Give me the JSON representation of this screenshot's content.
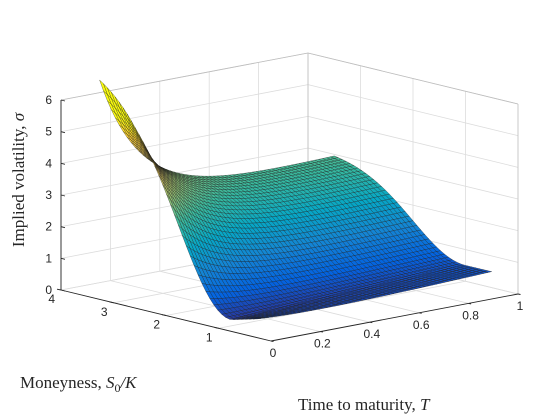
{
  "chart_data": {
    "type": "surface",
    "title": "",
    "xlabel": {
      "text": "Time to maturity, ",
      "symbol": "T"
    },
    "ylabel": {
      "text": "Moneyness, ",
      "symbol": "S",
      "sub": "0",
      "tail": "/K"
    },
    "zlabel": {
      "text": "Implied volatility, ",
      "symbol": "σ"
    },
    "x_range": [
      0,
      1
    ],
    "y_range": [
      0,
      4
    ],
    "z_range": [
      0,
      6
    ],
    "x_ticks": [
      "0",
      "0.2",
      "0.4",
      "0.6",
      "0.8",
      "1"
    ],
    "y_ticks": [
      "1",
      "2",
      "3",
      "4"
    ],
    "z_ticks": [
      "0",
      "1",
      "2",
      "3",
      "4",
      "5",
      "6"
    ],
    "surface_domain": {
      "T": [
        0.05,
        1.0
      ],
      "moneyness": [
        0.5,
        3.5
      ]
    },
    "grid_rows": 41,
    "grid_cols": 61,
    "colormap": "parula",
    "colormap_stops": [
      "#352a87",
      "#0363e1",
      "#1485d4",
      "#06a7c6",
      "#38b99e",
      "#92bf73",
      "#d9ba56",
      "#fcce2e",
      "#f9fb0e"
    ],
    "color_limits": [
      0,
      5.6
    ],
    "sample_points": [
      {
        "T": 0.05,
        "moneyness": 3.5,
        "iv": 5.6
      },
      {
        "T": 0.05,
        "moneyness": 2.2,
        "iv": 3.2
      },
      {
        "T": 0.05,
        "moneyness": 1.0,
        "iv": 0.8
      },
      {
        "T": 0.05,
        "moneyness": 0.5,
        "iv": 0.3
      },
      {
        "T": 1.0,
        "moneyness": 3.5,
        "iv": 2.9
      },
      {
        "T": 1.0,
        "moneyness": 1.0,
        "iv": 0.5
      },
      {
        "T": 1.0,
        "moneyness": 0.5,
        "iv": 0.15
      }
    ],
    "grid": true,
    "box": true
  }
}
